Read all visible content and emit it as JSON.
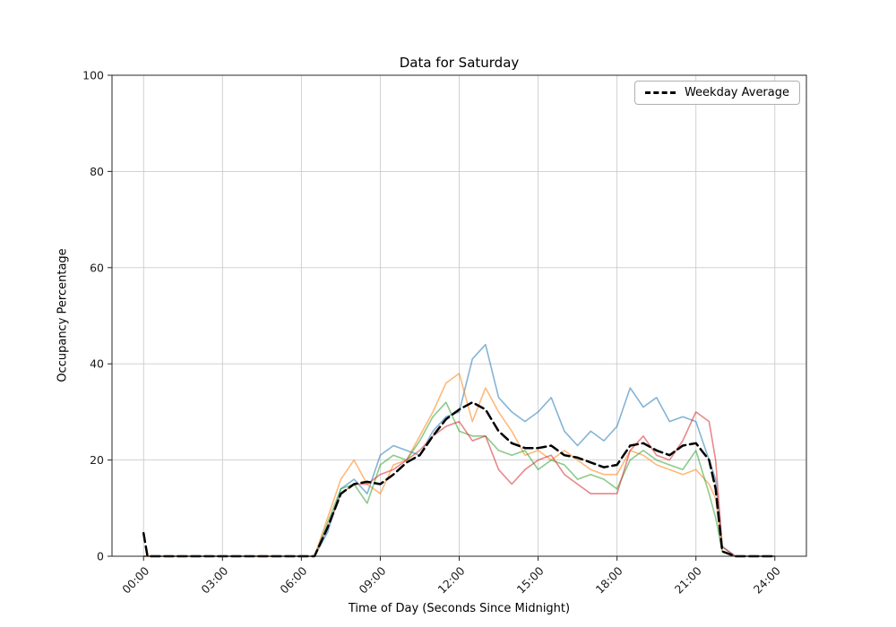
{
  "chart_data": {
    "type": "line",
    "title": "Data for Saturday",
    "xlabel": "Time of Day (Seconds Since Midnight)",
    "ylabel": "Occupancy Percentage",
    "grid": true,
    "ylim": [
      0,
      100
    ],
    "xlim_hours": [
      -1.2,
      25.2
    ],
    "y_ticks": [
      0,
      20,
      40,
      60,
      80,
      100
    ],
    "x_tick_hours": [
      0,
      3,
      6,
      9,
      12,
      15,
      18,
      21,
      24
    ],
    "x_tick_labels": [
      "00:00",
      "03:00",
      "06:00",
      "09:00",
      "12:00",
      "15:00",
      "18:00",
      "21:00",
      "24:00"
    ],
    "legend": {
      "position": "upper right",
      "entries": [
        {
          "label": "Weekday Average",
          "color": "#000000",
          "style": "dashed"
        }
      ]
    },
    "x_hours": [
      0,
      0.15,
      0.5,
      1,
      1.5,
      2,
      2.5,
      3,
      3.5,
      4,
      4.5,
      5,
      5.5,
      6,
      6.5,
      7,
      7.5,
      8,
      8.5,
      9,
      9.5,
      10,
      10.5,
      11,
      11.5,
      12,
      12.5,
      13,
      13.5,
      14,
      14.5,
      15,
      15.5,
      16,
      16.5,
      17,
      17.5,
      18,
      18.5,
      19,
      19.5,
      20,
      20.5,
      21,
      21.5,
      21.75,
      22,
      22.5,
      23,
      23.5,
      24
    ],
    "series": [
      {
        "name": "line-blue",
        "color": "#1f77b4",
        "alpha": 0.55,
        "width": 1.6,
        "dashed": false,
        "values": [
          0,
          0,
          0,
          0,
          0,
          0,
          0,
          0,
          0,
          0,
          0,
          0,
          0,
          0,
          0,
          5,
          14,
          16,
          13,
          21,
          23,
          22,
          21,
          26,
          29,
          30,
          41,
          44,
          33,
          30,
          28,
          30,
          33,
          26,
          23,
          26,
          24,
          27,
          35,
          31,
          33,
          28,
          29,
          28,
          20,
          16,
          2,
          0,
          0,
          0,
          0
        ]
      },
      {
        "name": "line-orange",
        "color": "#ff7f0e",
        "alpha": 0.55,
        "width": 1.6,
        "dashed": false,
        "values": [
          0,
          0,
          0,
          0,
          0,
          0,
          0,
          0,
          0,
          0,
          0,
          0,
          0,
          0,
          0,
          8,
          16,
          20,
          15,
          13,
          19,
          20,
          25,
          30,
          36,
          38,
          28,
          35,
          30,
          26,
          21,
          22,
          20,
          22,
          20,
          18,
          17,
          17,
          22,
          21,
          19,
          18,
          17,
          18,
          15,
          12,
          1,
          0,
          0,
          0,
          0
        ]
      },
      {
        "name": "line-green",
        "color": "#2ca02c",
        "alpha": 0.55,
        "width": 1.6,
        "dashed": false,
        "values": [
          0,
          0,
          0,
          0,
          0,
          0,
          0,
          0,
          0,
          0,
          0,
          0,
          0,
          0,
          0,
          7,
          14,
          15,
          11,
          19,
          21,
          20,
          24,
          29,
          32,
          26,
          25,
          25,
          22,
          21,
          22,
          18,
          20,
          19,
          16,
          17,
          16,
          14,
          20,
          22,
          20,
          19,
          18,
          22,
          13,
          8,
          1,
          0,
          0,
          0,
          0
        ]
      },
      {
        "name": "line-red",
        "color": "#d62728",
        "alpha": 0.55,
        "width": 1.6,
        "dashed": false,
        "values": [
          0,
          0,
          0,
          0,
          0,
          0,
          0,
          0,
          0,
          0,
          0,
          0,
          0,
          0,
          0,
          6,
          13,
          15,
          15,
          17,
          18,
          20,
          22,
          25,
          27,
          28,
          24,
          25,
          18,
          15,
          18,
          20,
          21,
          17,
          15,
          13,
          13,
          13,
          22,
          25,
          21,
          20,
          24,
          30,
          28,
          20,
          2,
          0,
          0,
          0,
          0
        ]
      },
      {
        "name": "weekday-average",
        "color": "#000000",
        "alpha": 1,
        "width": 2.5,
        "dashed": true,
        "values": [
          4.8,
          0,
          0,
          0,
          0,
          0,
          0,
          0,
          0,
          0,
          0,
          0,
          0,
          0,
          0,
          6,
          13,
          15,
          15.5,
          15,
          17,
          19.5,
          21,
          25,
          28.5,
          30.5,
          32,
          30.5,
          26,
          23.5,
          22.5,
          22.5,
          23,
          21,
          20.5,
          19.5,
          18.5,
          19,
          23,
          23.5,
          22,
          21,
          23,
          23.5,
          20,
          14,
          1,
          0,
          0,
          0,
          0
        ]
      }
    ],
    "style": {
      "grid_color": "#cccccc",
      "spine_color": "#262626",
      "tick_text_color": "#1a1a1a"
    }
  }
}
